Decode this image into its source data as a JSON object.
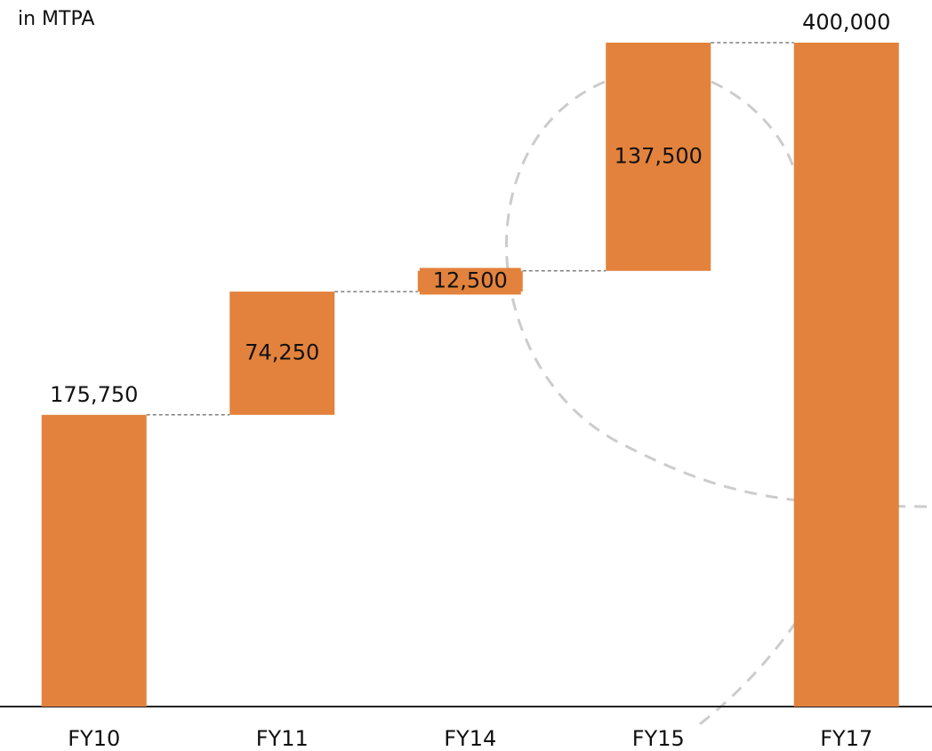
{
  "chart_data": {
    "type": "waterfall",
    "subtitle": "in MTPA",
    "categories": [
      "FY10",
      "FY11",
      "FY14",
      "FY15",
      "FY17"
    ],
    "values": [
      175750,
      74250,
      12500,
      137500,
      400000
    ],
    "value_labels": [
      "175,750",
      "74,250",
      "12,500",
      "137,500",
      "400,000"
    ],
    "measure": [
      "absolute",
      "relative",
      "relative",
      "relative",
      "total"
    ],
    "color": "#e3823c",
    "ylim": [
      0,
      400000
    ]
  }
}
